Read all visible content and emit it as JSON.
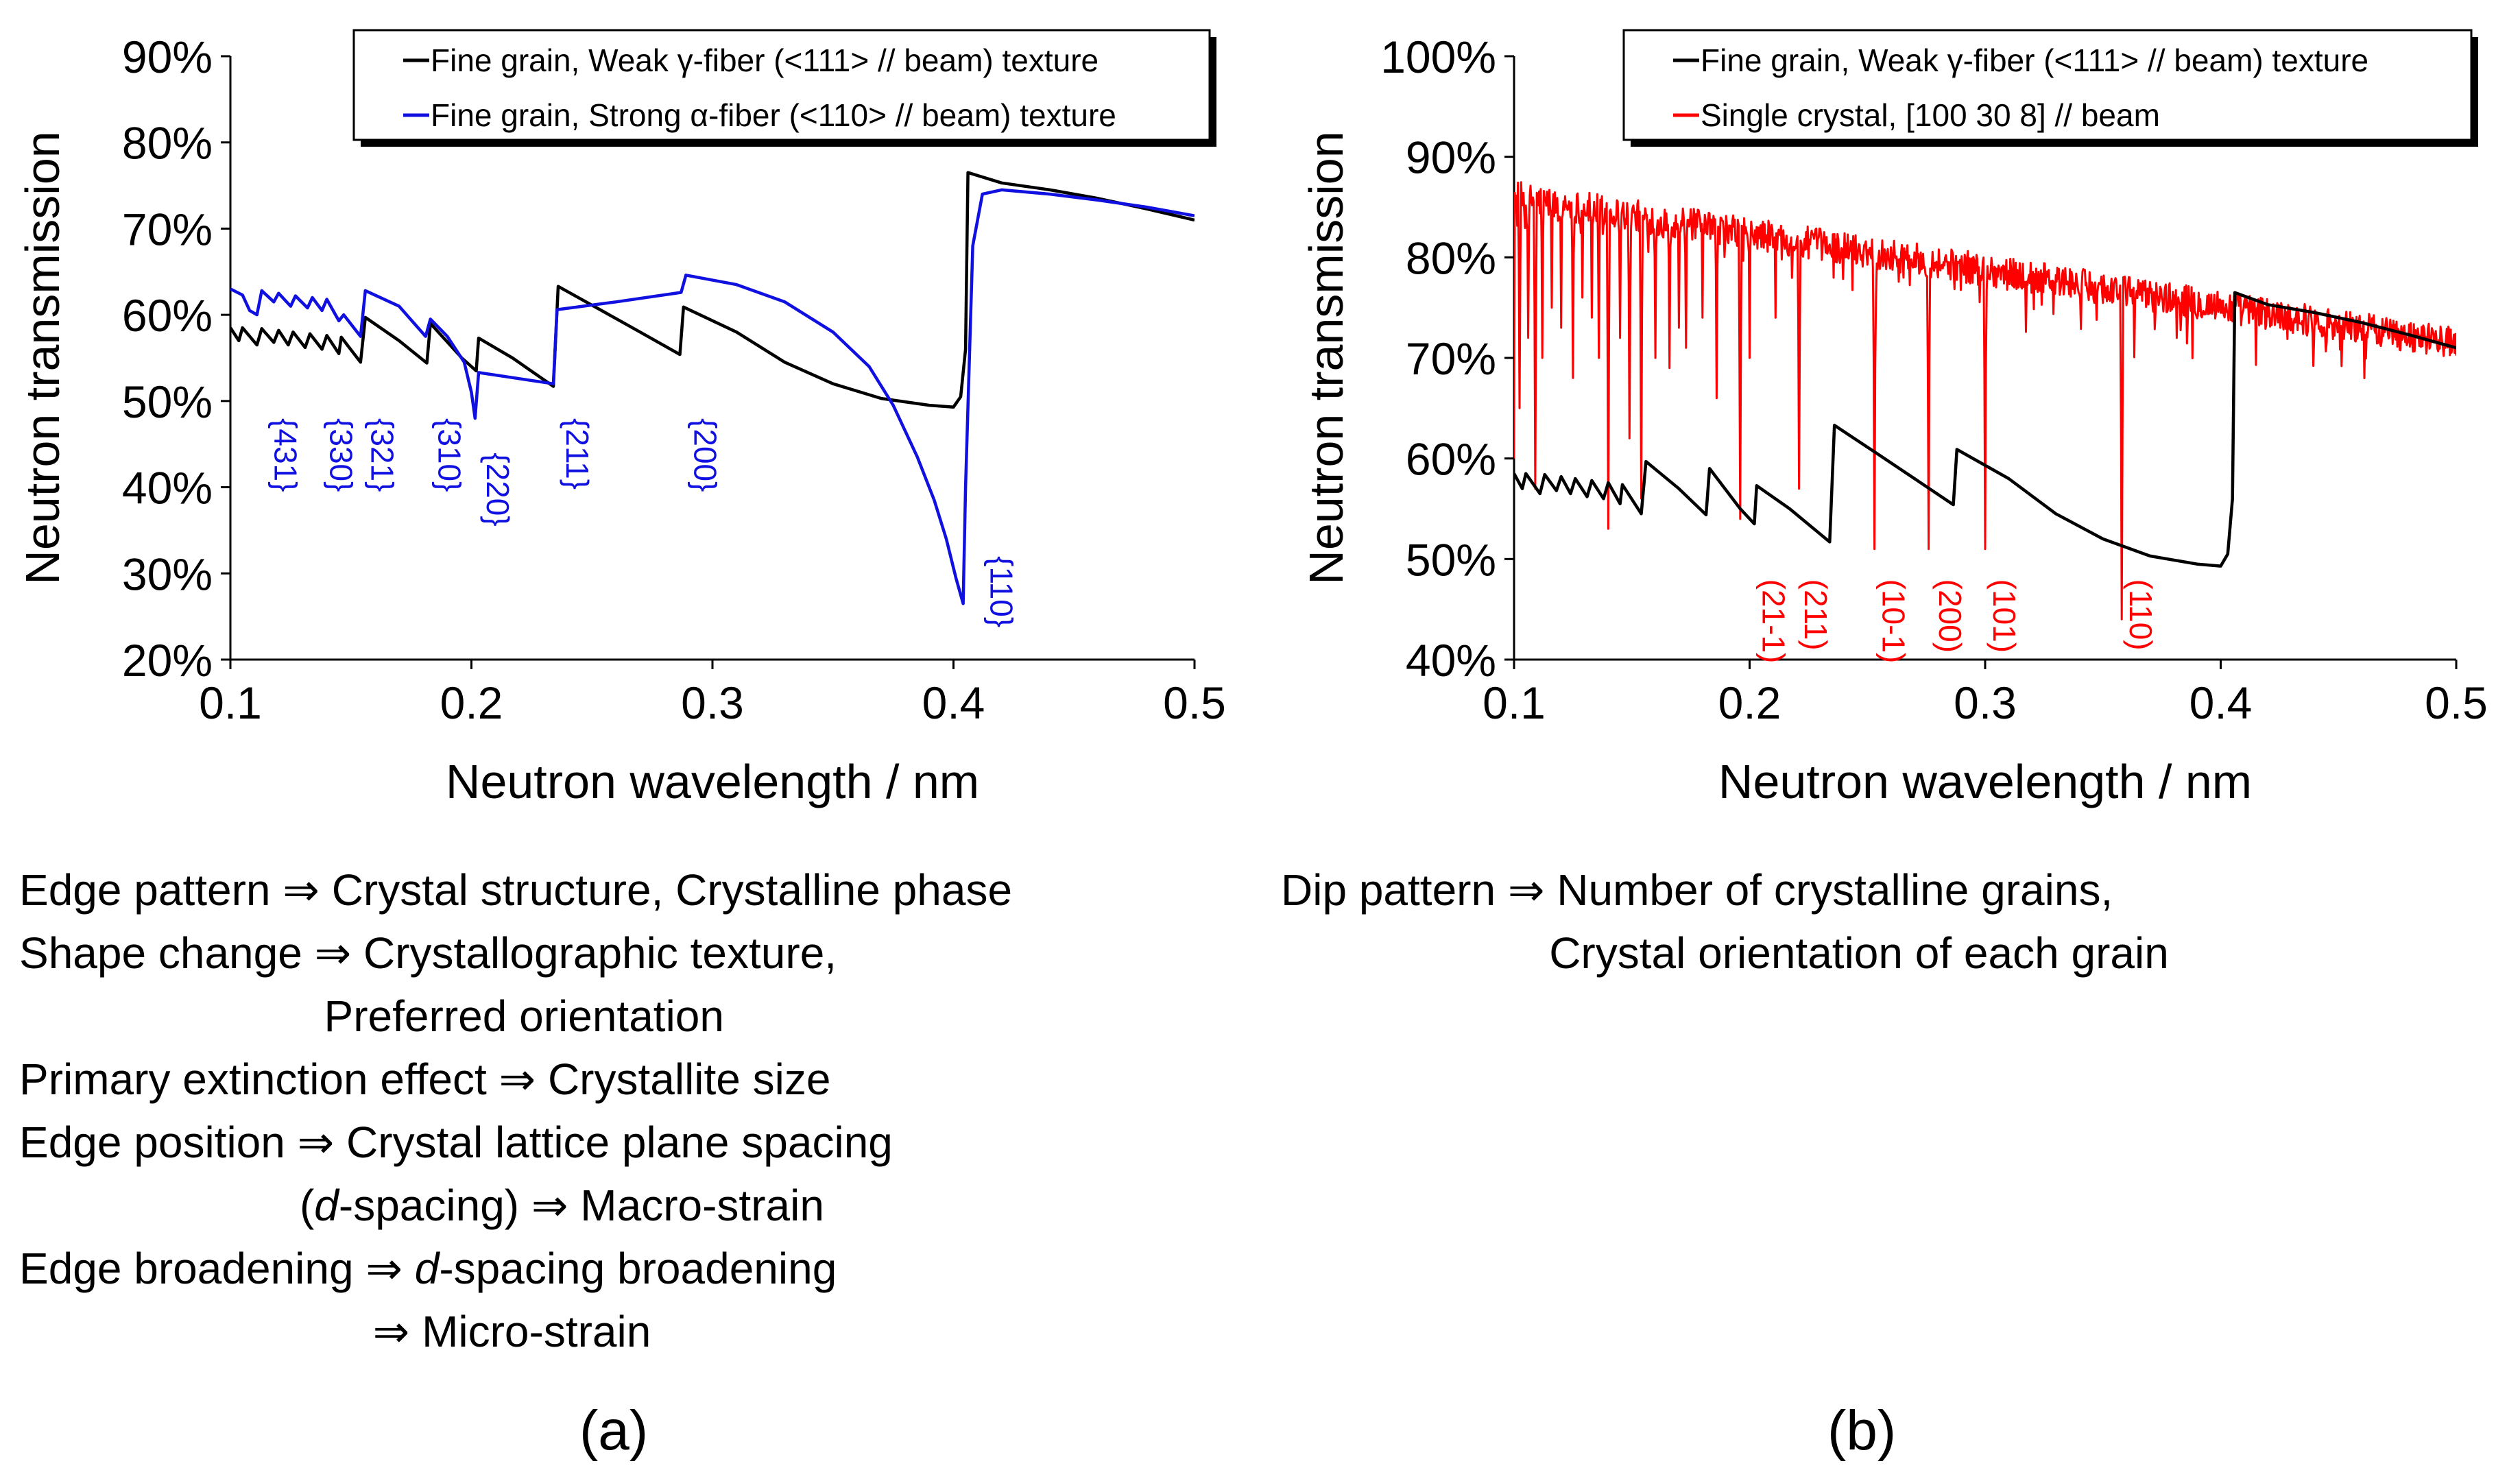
{
  "figure_title": "Neutron transmission spectra",
  "chart_data": [
    {
      "type": "line",
      "panel": "a",
      "title": "",
      "xlabel": "Neutron wavelength / nm",
      "ylabel": "Neutron transmission",
      "xlim": [
        0.1,
        0.5
      ],
      "ylim": [
        20,
        90
      ],
      "xticks": [
        0.1,
        0.2,
        0.3,
        0.4,
        0.5
      ],
      "xtick_labels": [
        "0.1",
        "0.2",
        "0.3",
        "0.4",
        "0.5"
      ],
      "yticks": [
        20,
        30,
        40,
        50,
        60,
        70,
        80,
        90
      ],
      "ytick_labels": [
        "20%",
        "30%",
        "40%",
        "50%",
        "60%",
        "70%",
        "80%",
        "90%"
      ],
      "legend_position": "top-right",
      "series": [
        {
          "name": "Fine grain, Weak γ-fiber (<111> // beam) texture",
          "color": "#000000",
          "x": [
            0.1,
            0.1035,
            0.105,
            0.108,
            0.111,
            0.113,
            0.118,
            0.12,
            0.124,
            0.126,
            0.131,
            0.133,
            0.138,
            0.14,
            0.145,
            0.146,
            0.154,
            0.156,
            0.17,
            0.1815,
            0.183,
            0.196,
            0.202,
            0.203,
            0.217,
            0.234,
            0.236,
            0.254,
            0.27,
            0.2865,
            0.288,
            0.31,
            0.33,
            0.35,
            0.37,
            0.39,
            0.4,
            0.403,
            0.405,
            0.406,
            0.42,
            0.44,
            0.46,
            0.48,
            0.5
          ],
          "values": [
            58.5,
            57.0,
            58.5,
            57.5,
            56.5,
            58.4,
            56.8,
            58.2,
            56.5,
            58.0,
            56.2,
            57.8,
            56.0,
            57.6,
            55.5,
            57.4,
            54.5,
            59.7,
            57.0,
            54.4,
            59.0,
            55.0,
            53.5,
            57.3,
            55.0,
            51.7,
            63.3,
            60.5,
            58.0,
            55.4,
            60.9,
            58.0,
            54.5,
            52.0,
            50.3,
            49.5,
            49.3,
            50.5,
            56.0,
            76.5,
            75.3,
            74.5,
            73.5,
            72.3,
            71.0
          ]
        },
        {
          "name": "Fine grain, Strong α-fiber (<110> // beam) texture",
          "color": "#1010e0",
          "x": [
            0.1,
            0.105,
            0.108,
            0.111,
            0.113,
            0.118,
            0.12,
            0.125,
            0.127,
            0.132,
            0.134,
            0.138,
            0.14,
            0.145,
            0.147,
            0.154,
            0.156,
            0.17,
            0.181,
            0.183,
            0.19,
            0.197,
            0.2,
            0.2015,
            0.203,
            0.215,
            0.234,
            0.2355,
            0.26,
            0.287,
            0.289,
            0.31,
            0.33,
            0.35,
            0.365,
            0.375,
            0.385,
            0.392,
            0.397,
            0.401,
            0.404,
            0.405,
            0.408,
            0.412,
            0.42,
            0.44,
            0.46,
            0.48,
            0.5
          ],
          "values": [
            63.0,
            62.3,
            60.5,
            60.0,
            62.8,
            61.5,
            62.5,
            61.0,
            62.2,
            60.8,
            62.0,
            60.5,
            61.8,
            59.3,
            60.0,
            57.5,
            62.8,
            61.0,
            57.5,
            59.5,
            57.5,
            54.5,
            51.0,
            48.0,
            53.3,
            52.8,
            52.0,
            60.6,
            61.5,
            62.6,
            64.6,
            63.5,
            61.5,
            58.0,
            54.0,
            49.5,
            43.5,
            38.5,
            34.0,
            29.5,
            26.5,
            40.0,
            68.0,
            74.0,
            74.5,
            74.0,
            73.3,
            72.5,
            71.5
          ]
        }
      ],
      "annotations": [
        "{431}",
        "{330}",
        "{321}",
        "{310}",
        "{220}",
        "{211}",
        "{200}",
        "{110}"
      ],
      "annotation_x": [
        0.115,
        0.138,
        0.155,
        0.183,
        0.203,
        0.236,
        0.289,
        0.412
      ],
      "annotation_y": [
        48,
        48,
        48,
        48,
        44,
        48,
        48,
        32
      ],
      "annotation_color": "#1010e0"
    },
    {
      "type": "line",
      "panel": "b",
      "title": "",
      "xlabel": "Neutron wavelength / nm",
      "ylabel": "Neutron transmission",
      "xlim": [
        0.1,
        0.5
      ],
      "ylim": [
        40,
        100
      ],
      "xticks": [
        0.1,
        0.2,
        0.3,
        0.4,
        0.5
      ],
      "xtick_labels": [
        "0.1",
        "0.2",
        "0.3",
        "0.4",
        "0.5"
      ],
      "yticks": [
        40,
        50,
        60,
        70,
        80,
        90,
        100
      ],
      "ytick_labels": [
        "40%",
        "50%",
        "60%",
        "70%",
        "80%",
        "90%",
        "100%"
      ],
      "legend_position": "top-right",
      "series": [
        {
          "name": "Fine grain, Weak γ-fiber (<111> // beam) texture",
          "color": "#000000",
          "x": [
            0.1,
            0.1035,
            0.105,
            0.108,
            0.111,
            0.113,
            0.118,
            0.12,
            0.124,
            0.126,
            0.131,
            0.133,
            0.138,
            0.14,
            0.145,
            0.146,
            0.154,
            0.156,
            0.17,
            0.1815,
            0.183,
            0.196,
            0.202,
            0.203,
            0.217,
            0.234,
            0.236,
            0.254,
            0.27,
            0.2865,
            0.288,
            0.31,
            0.33,
            0.35,
            0.37,
            0.39,
            0.4,
            0.403,
            0.405,
            0.406,
            0.42,
            0.44,
            0.46,
            0.48,
            0.5
          ],
          "values": [
            58.5,
            57.0,
            58.5,
            57.5,
            56.5,
            58.4,
            56.8,
            58.2,
            56.5,
            58.0,
            56.2,
            57.8,
            56.0,
            57.6,
            55.5,
            57.4,
            54.5,
            59.7,
            57.0,
            54.4,
            59.0,
            55.0,
            53.5,
            57.3,
            55.0,
            51.7,
            63.3,
            60.5,
            58.0,
            55.4,
            60.9,
            58.0,
            54.5,
            52.0,
            50.3,
            49.5,
            49.3,
            50.5,
            56.0,
            76.5,
            75.3,
            74.5,
            73.5,
            72.3,
            71.0
          ]
        },
        {
          "name": "Single crystal, [100 30 8] // beam",
          "color": "#ff0000",
          "x_start": 0.1,
          "x_end": 0.5,
          "baseline_start": 86.0,
          "baseline_end": 71.5,
          "noise_amplitude": 1.6,
          "dips": [
            {
              "x": 0.1025,
              "min": 65.0
            },
            {
              "x": 0.106,
              "min": 72.0
            },
            {
              "x": 0.109,
              "min": 57.0
            },
            {
              "x": 0.112,
              "min": 70.0
            },
            {
              "x": 0.116,
              "min": 75.0
            },
            {
              "x": 0.12,
              "min": 73.0
            },
            {
              "x": 0.125,
              "min": 68.0
            },
            {
              "x": 0.129,
              "min": 76.0
            },
            {
              "x": 0.133,
              "min": 74.0
            },
            {
              "x": 0.136,
              "min": 70.0
            },
            {
              "x": 0.14,
              "min": 53.0
            },
            {
              "x": 0.145,
              "min": 72.0
            },
            {
              "x": 0.149,
              "min": 62.0
            },
            {
              "x": 0.154,
              "min": 56.0
            },
            {
              "x": 0.16,
              "min": 70.0
            },
            {
              "x": 0.166,
              "min": 69.0
            },
            {
              "x": 0.17,
              "min": 73.0
            },
            {
              "x": 0.173,
              "min": 71.0
            },
            {
              "x": 0.18,
              "min": 74.0
            },
            {
              "x": 0.186,
              "min": 66.0
            },
            {
              "x": 0.196,
              "min": 54.0
            },
            {
              "x": 0.2,
              "min": 70.0
            },
            {
              "x": 0.211,
              "min": 74.0
            },
            {
              "x": 0.221,
              "min": 57.0
            },
            {
              "x": 0.253,
              "min": 51.0
            },
            {
              "x": 0.276,
              "min": 51.0
            },
            {
              "x": 0.3,
              "min": 51.0
            },
            {
              "x": 0.358,
              "min": 44.0
            }
          ]
        }
      ],
      "annotations": [
        "(21-1)",
        "(211)",
        "(10-1)",
        "(200)",
        "(101)",
        "(110)"
      ],
      "annotation_x": [
        0.202,
        0.22,
        0.253,
        0.277,
        0.3,
        0.358
      ],
      "annotation_y": [
        48,
        48,
        48,
        48,
        48,
        48
      ],
      "annotation_color": "#ff0000"
    }
  ],
  "notes_a": "Edge pattern ⇒ Crystal structure, Crystalline phase\nShape change ⇒ Crystallographic texture,\n                         Preferred orientation\nPrimary extinction effect ⇒ Crystallite size\nEdge position ⇒ Crystal lattice plane spacing\n                       (d-spacing) ⇒ Macro-strain\nEdge broadening ⇒ d-spacing broadening\n                             ⇒ Micro-strain",
  "notes_b": "Dip pattern ⇒ Number of crystalline grains,\n                      Crystal orientation of each grain",
  "panel_labels": [
    "(a)",
    "(b)"
  ]
}
